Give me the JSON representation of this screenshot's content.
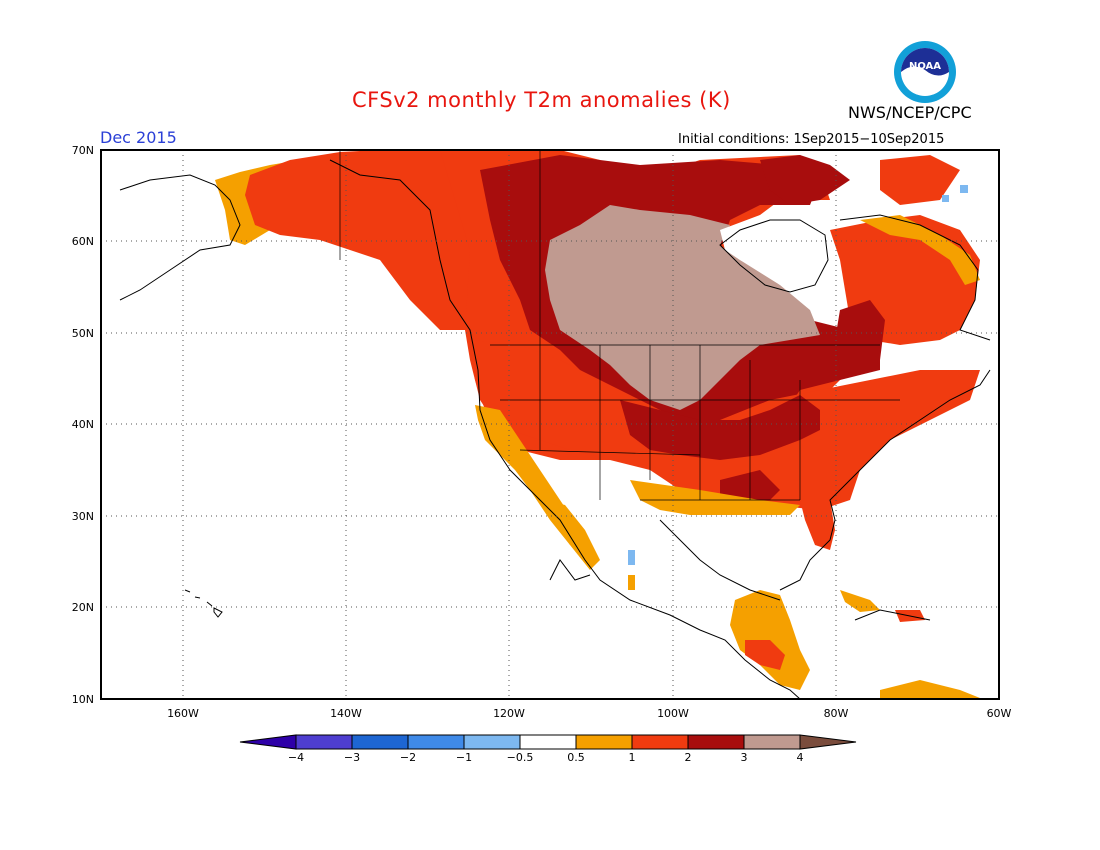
{
  "header": {
    "title": "CFSv2 monthly T2m anomalies (K)",
    "agency": "NWS/NCEP/CPC",
    "month": "Dec 2015",
    "initial_conditions": "Initial conditions: 1Sep2015−10Sep2015"
  },
  "logo": {
    "icon": "noaa-logo",
    "text": "NOAA"
  },
  "axes": {
    "lat_labels": [
      "70N",
      "60N",
      "50N",
      "40N",
      "30N",
      "20N",
      "10N"
    ],
    "lon_labels": [
      "160W",
      "140W",
      "120W",
      "100W",
      "80W",
      "60W"
    ],
    "lon_range": [
      -170,
      -60
    ],
    "lat_range": [
      10,
      70
    ],
    "grid": "dotted"
  },
  "legend": {
    "labels": [
      "−4",
      "−3",
      "−2",
      "−1",
      "−0.5",
      "0.5",
      "1",
      "2",
      "3",
      "4"
    ],
    "colors": [
      "#2e00a8",
      "#4e3ed0",
      "#1e66d2",
      "#3f8ae8",
      "#7db8f0",
      "#ffffff",
      "#f5a000",
      "#f03b10",
      "#a80d0d",
      "#c09a90",
      "#7a4c3c"
    ]
  }
}
